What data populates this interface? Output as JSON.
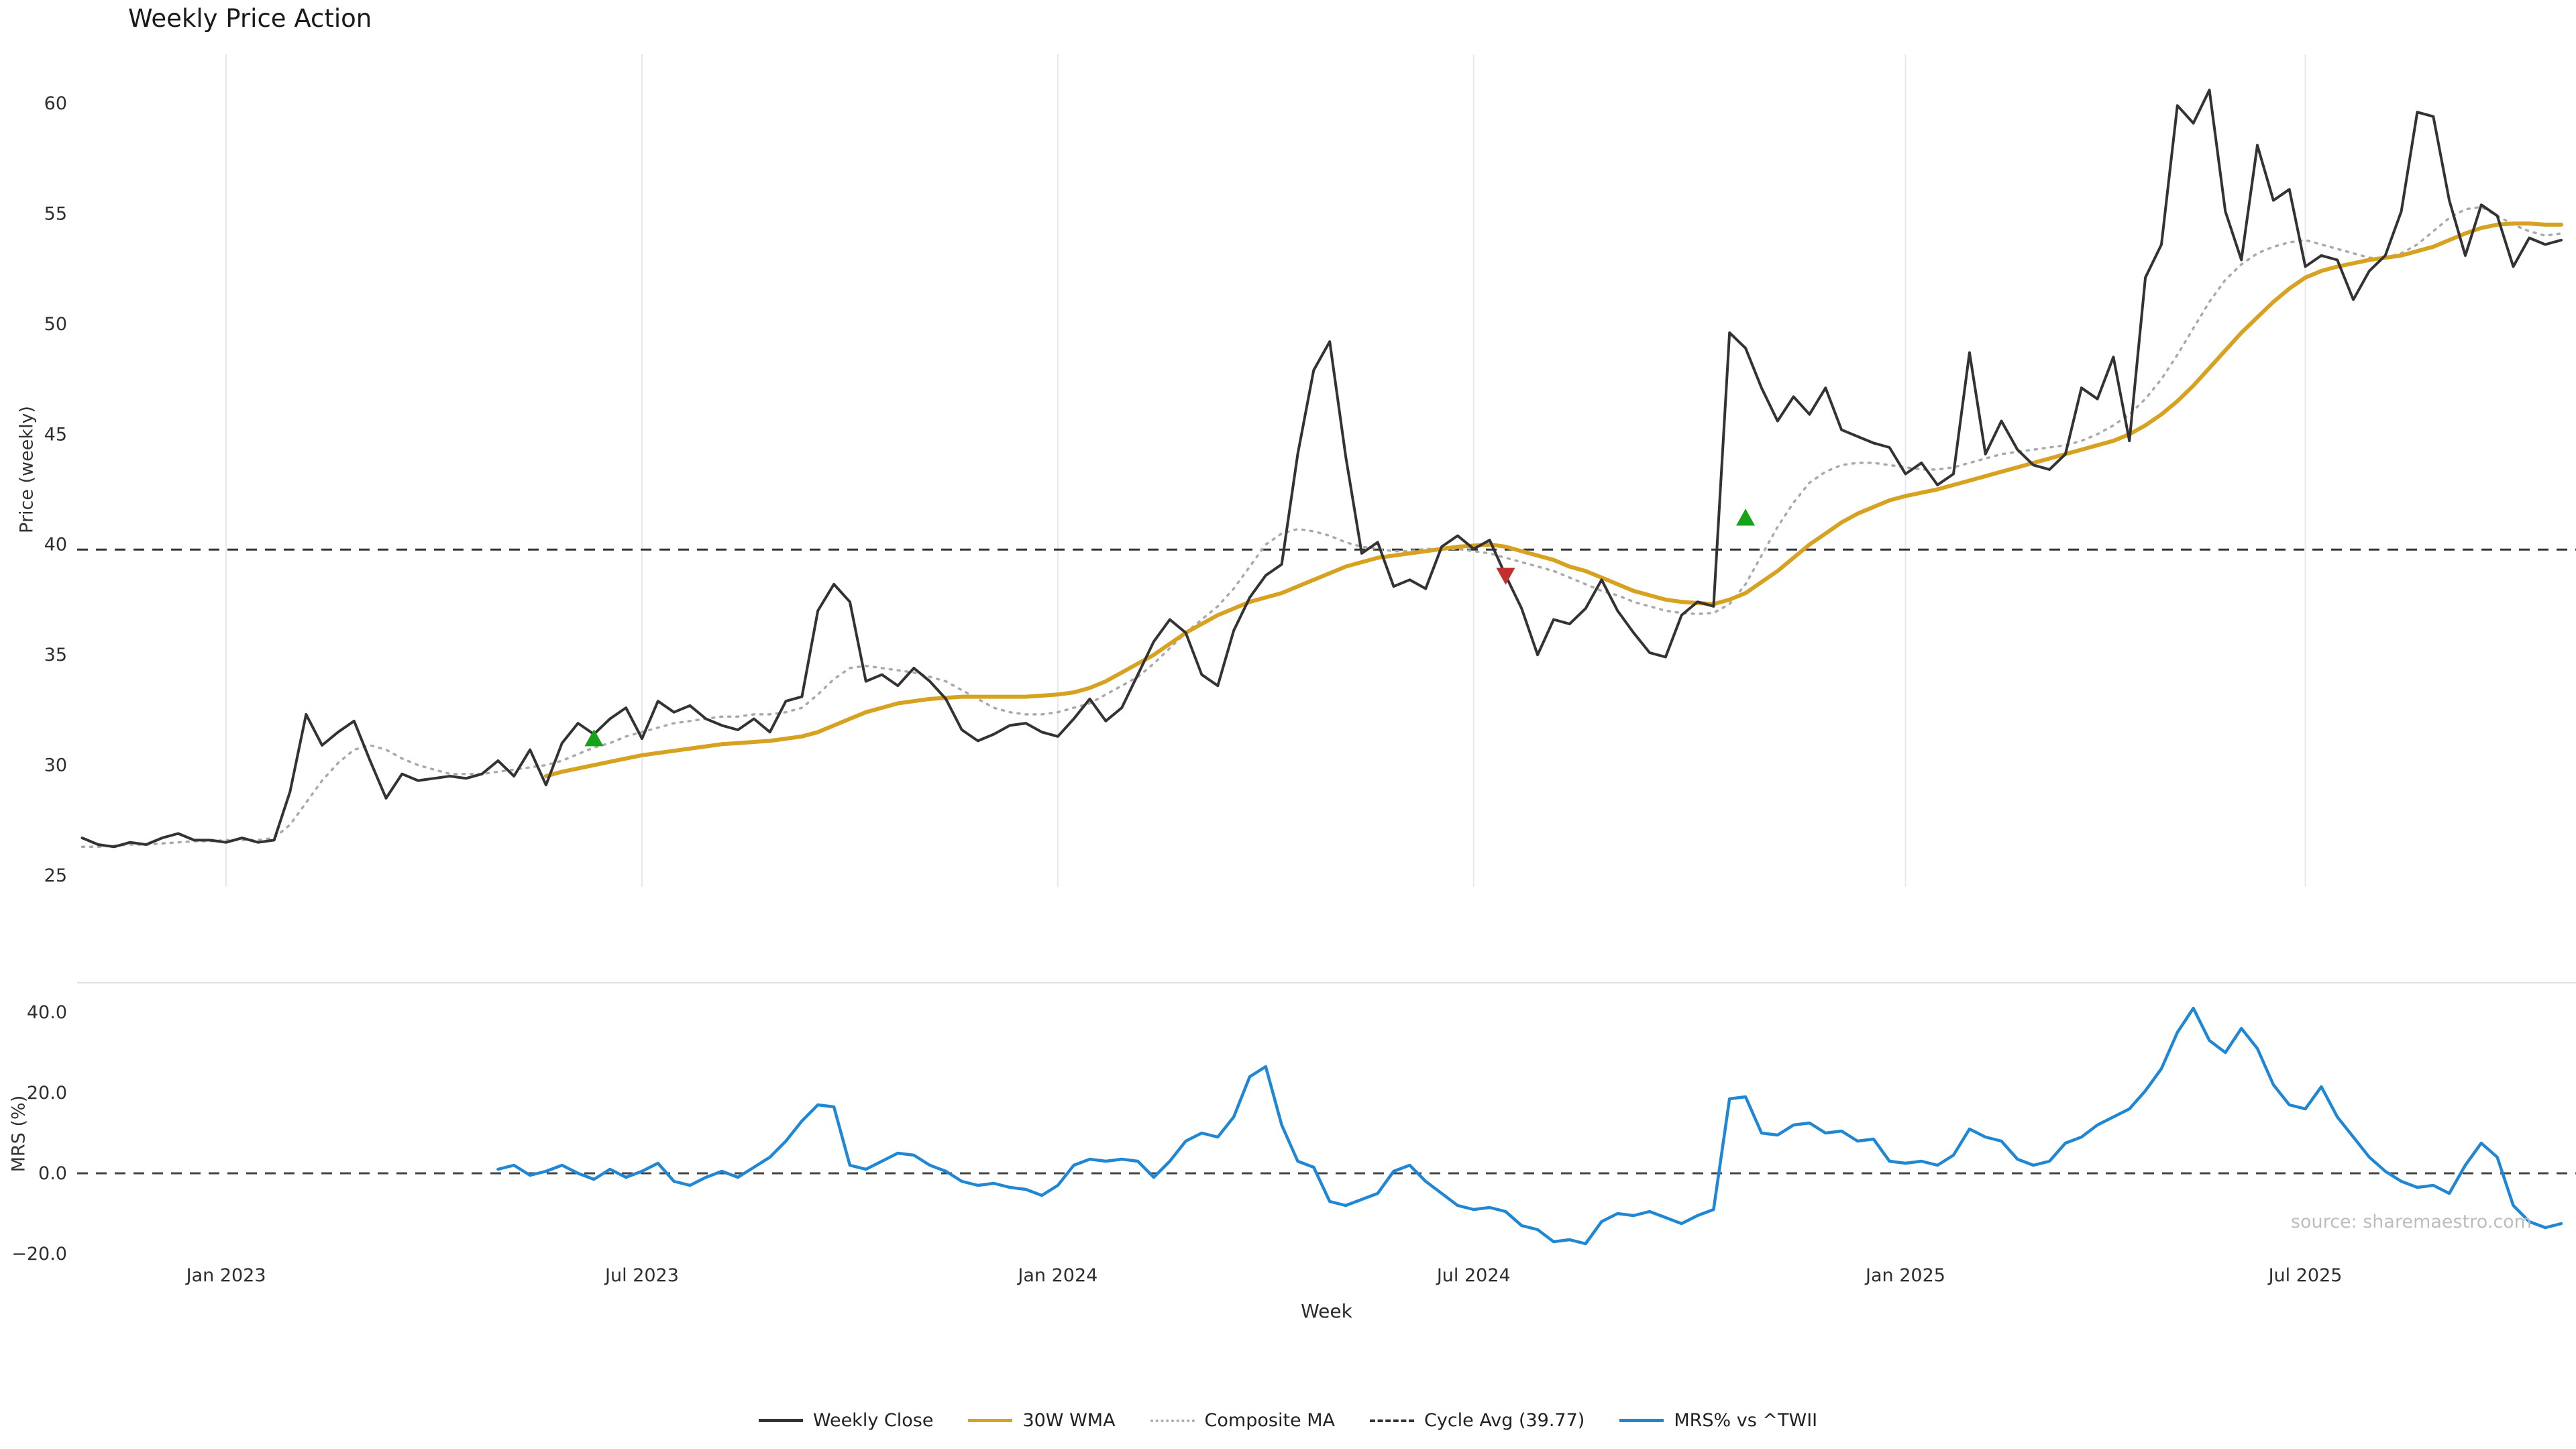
{
  "title": "Weekly Price Action",
  "source": "source: sharemaestro.com",
  "axes": {
    "price_label": "Price (weekly)",
    "mrs_label": "MRS (%)",
    "x_label": "Week"
  },
  "legend": [
    {
      "label": "Weekly Close",
      "color": "#333333",
      "style": "solid"
    },
    {
      "label": "30W WMA",
      "color": "#d6a220",
      "style": "solid"
    },
    {
      "label": "Composite MA",
      "color": "#aaaaaa",
      "style": "dotted"
    },
    {
      "label": "Cycle Avg (39.77)",
      "color": "#333333",
      "style": "dashed"
    },
    {
      "label": "MRS% vs ^TWII",
      "color": "#1f87d4",
      "style": "solid"
    }
  ],
  "chart_data": [
    {
      "type": "line",
      "panel": "price",
      "title": "Weekly Price Action",
      "xlabel": "Week",
      "ylabel": "Price (weekly)",
      "ylim": [
        24,
        62
      ],
      "yticks": [
        25,
        30,
        35,
        40,
        45,
        50,
        55,
        60
      ],
      "x_unit": "week_index",
      "x_range_weeks": [
        0,
        155
      ],
      "xticks": [
        {
          "week": 9,
          "label": "Jan 2023"
        },
        {
          "week": 35,
          "label": "Jul 2023"
        },
        {
          "week": 61,
          "label": "Jan 2024"
        },
        {
          "week": 87,
          "label": "Jul 2024"
        },
        {
          "week": 114,
          "label": "Jan 2025"
        },
        {
          "week": 139,
          "label": "Jul 2025"
        }
      ],
      "grid": "vertical-only",
      "legend_position": "bottom",
      "cycle_avg": 39.77,
      "series": [
        {
          "name": "Composite MA",
          "color": "#aaaaaa",
          "dash": "dot",
          "width": 3.5,
          "start_week": 0,
          "values": [
            26.3,
            26.3,
            26.35,
            26.4,
            26.4,
            26.45,
            26.5,
            26.55,
            26.55,
            26.6,
            26.6,
            26.6,
            26.7,
            27.3,
            28.3,
            29.3,
            30.1,
            30.7,
            30.9,
            30.7,
            30.3,
            30.0,
            29.8,
            29.6,
            29.6,
            29.6,
            29.7,
            29.8,
            29.9,
            30.0,
            30.2,
            30.5,
            30.8,
            31.0,
            31.3,
            31.5,
            31.7,
            31.9,
            32.0,
            32.1,
            32.2,
            32.2,
            32.3,
            32.3,
            32.4,
            32.6,
            33.2,
            33.9,
            34.4,
            34.5,
            34.4,
            34.3,
            34.2,
            34.0,
            33.8,
            33.4,
            33.0,
            32.6,
            32.4,
            32.3,
            32.3,
            32.4,
            32.6,
            32.8,
            33.2,
            33.6,
            34.0,
            34.6,
            35.3,
            36.0,
            36.6,
            37.2,
            38.0,
            39.0,
            40.0,
            40.5,
            40.7,
            40.6,
            40.4,
            40.1,
            39.9,
            39.8,
            39.7,
            39.7,
            39.8,
            39.8,
            39.8,
            39.7,
            39.6,
            39.4,
            39.2,
            39.0,
            38.8,
            38.5,
            38.2,
            37.9,
            37.7,
            37.4,
            37.2,
            37.0,
            36.9,
            36.85,
            36.9,
            37.3,
            38.2,
            39.5,
            40.8,
            41.9,
            42.8,
            43.3,
            43.6,
            43.7,
            43.7,
            43.6,
            43.5,
            43.4,
            43.4,
            43.5,
            43.7,
            43.9,
            44.1,
            44.2,
            44.3,
            44.4,
            44.5,
            44.7,
            45.0,
            45.4,
            45.9,
            46.6,
            47.5,
            48.6,
            49.8,
            51.0,
            52.0,
            52.7,
            53.2,
            53.5,
            53.7,
            53.8,
            53.6,
            53.4,
            53.2,
            53.0,
            53.0,
            53.2,
            53.6,
            54.2,
            54.8,
            55.2,
            55.3,
            54.9,
            54.5,
            54.2,
            54.0,
            54.1
          ]
        },
        {
          "name": "30W WMA",
          "color": "#d6a220",
          "dash": "solid",
          "width": 6,
          "start_week": 29,
          "values": [
            29.5,
            29.7,
            29.85,
            30.0,
            30.15,
            30.3,
            30.45,
            30.55,
            30.65,
            30.75,
            30.85,
            30.95,
            31.0,
            31.05,
            31.1,
            31.2,
            31.3,
            31.5,
            31.8,
            32.1,
            32.4,
            32.6,
            32.8,
            32.9,
            33.0,
            33.05,
            33.1,
            33.1,
            33.1,
            33.1,
            33.1,
            33.15,
            33.2,
            33.3,
            33.5,
            33.8,
            34.2,
            34.6,
            35.0,
            35.5,
            36.0,
            36.4,
            36.8,
            37.1,
            37.4,
            37.6,
            37.8,
            38.1,
            38.4,
            38.7,
            39.0,
            39.2,
            39.4,
            39.5,
            39.6,
            39.7,
            39.8,
            39.9,
            39.95,
            40.0,
            39.9,
            39.7,
            39.5,
            39.3,
            39.0,
            38.8,
            38.5,
            38.2,
            37.9,
            37.7,
            37.5,
            37.4,
            37.35,
            37.3,
            37.5,
            37.8,
            38.3,
            38.8,
            39.4,
            40.0,
            40.5,
            41.0,
            41.4,
            41.7,
            42.0,
            42.2,
            42.35,
            42.5,
            42.7,
            42.9,
            43.1,
            43.3,
            43.5,
            43.7,
            43.9,
            44.1,
            44.3,
            44.5,
            44.7,
            45.0,
            45.4,
            45.9,
            46.5,
            47.2,
            48.0,
            48.8,
            49.6,
            50.3,
            51.0,
            51.6,
            52.1,
            52.4,
            52.6,
            52.75,
            52.9,
            53.0,
            53.1,
            53.3,
            53.5,
            53.8,
            54.1,
            54.35,
            54.5,
            54.55,
            54.55,
            54.5,
            54.5
          ]
        },
        {
          "name": "Weekly Close",
          "color": "#333333",
          "dash": "solid",
          "width": 4,
          "start_week": 0,
          "values": [
            26.7,
            26.4,
            26.3,
            26.5,
            26.4,
            26.7,
            26.9,
            26.6,
            26.6,
            26.5,
            26.7,
            26.5,
            26.6,
            28.8,
            32.3,
            30.9,
            31.5,
            32.0,
            30.2,
            28.5,
            29.6,
            29.3,
            29.4,
            29.5,
            29.4,
            29.6,
            30.2,
            29.5,
            30.7,
            29.1,
            31.0,
            31.9,
            31.4,
            32.1,
            32.6,
            31.2,
            32.9,
            32.4,
            32.7,
            32.1,
            31.8,
            31.6,
            32.1,
            31.5,
            32.9,
            33.1,
            37.0,
            38.2,
            37.4,
            33.8,
            34.1,
            33.6,
            34.4,
            33.8,
            33.0,
            31.6,
            31.1,
            31.4,
            31.8,
            31.9,
            31.5,
            31.3,
            32.1,
            33.0,
            32.0,
            32.6,
            34.1,
            35.6,
            36.6,
            36.0,
            34.1,
            33.6,
            36.1,
            37.6,
            38.6,
            39.1,
            44.1,
            47.9,
            49.2,
            44.0,
            39.6,
            40.1,
            38.1,
            38.4,
            38.0,
            39.9,
            40.4,
            39.8,
            40.2,
            38.6,
            37.1,
            35.0,
            36.6,
            36.4,
            37.1,
            38.4,
            37.0,
            36.0,
            35.1,
            34.9,
            36.8,
            37.4,
            37.2,
            49.6,
            48.9,
            47.1,
            45.6,
            46.7,
            45.9,
            47.1,
            45.2,
            44.9,
            44.6,
            44.4,
            43.2,
            43.7,
            42.7,
            43.2,
            48.7,
            44.1,
            45.6,
            44.3,
            43.6,
            43.4,
            44.1,
            47.1,
            46.6,
            48.5,
            44.7,
            52.1,
            53.6,
            59.9,
            59.1,
            60.6,
            55.1,
            52.9,
            58.1,
            55.6,
            56.1,
            52.6,
            53.1,
            52.9,
            51.1,
            52.4,
            53.1,
            55.1,
            59.6,
            59.4,
            55.6,
            53.1,
            55.4,
            54.9,
            52.6,
            53.9,
            53.6,
            53.8
          ]
        }
      ],
      "markers": [
        {
          "week": 32,
          "value": 31.2,
          "shape": "triangle-up",
          "color": "#17a317",
          "meaning": "buy-signal"
        },
        {
          "week": 89,
          "value": 38.6,
          "shape": "triangle-down",
          "color": "#c22f2f",
          "meaning": "sell-signal"
        },
        {
          "week": 104,
          "value": 41.2,
          "shape": "triangle-up",
          "color": "#17a317",
          "meaning": "buy-signal"
        }
      ]
    },
    {
      "type": "line",
      "panel": "mrs",
      "ylabel": "MRS (%)",
      "ylim": [
        -22,
        45
      ],
      "yticks": [
        40,
        20,
        0,
        -20
      ],
      "ytick_labels": [
        "40.0",
        "20.0",
        "0.0",
        "−20.0"
      ],
      "zero_line": 0,
      "series": [
        {
          "name": "MRS% vs ^TWII",
          "color": "#1f87d4",
          "dash": "solid",
          "width": 4.5,
          "start_week": 26,
          "values": [
            1.0,
            2.0,
            -0.5,
            0.5,
            2.0,
            0.0,
            -1.5,
            1.0,
            -1.0,
            0.5,
            2.5,
            -2.0,
            -3.0,
            -1.0,
            0.5,
            -1.0,
            1.5,
            4.0,
            8.0,
            13.0,
            17.0,
            16.5,
            2.0,
            1.0,
            3.0,
            5.0,
            4.5,
            2.0,
            0.5,
            -2.0,
            -3.0,
            -2.5,
            -3.5,
            -4.0,
            -5.5,
            -3.0,
            2.0,
            3.5,
            3.0,
            3.5,
            3.0,
            -1.0,
            3.0,
            8.0,
            10.0,
            9.0,
            14.0,
            24.0,
            26.5,
            12.0,
            3.0,
            1.5,
            -7.0,
            -8.0,
            -6.5,
            -5.0,
            0.5,
            2.0,
            -2.0,
            -5.0,
            -8.0,
            -9.0,
            -8.5,
            -9.5,
            -13.0,
            -14.0,
            -17.0,
            -16.5,
            -17.5,
            -12.0,
            -10.0,
            -10.5,
            -9.5,
            -11.0,
            -12.5,
            -10.5,
            -9.0,
            18.5,
            19.0,
            10.0,
            9.5,
            12.0,
            12.5,
            10.0,
            10.5,
            8.0,
            8.5,
            3.0,
            2.5,
            3.0,
            2.0,
            4.5,
            11.0,
            9.0,
            8.0,
            3.5,
            2.0,
            3.0,
            7.5,
            9.0,
            12.0,
            14.0,
            16.0,
            20.5,
            26.0,
            35.0,
            41.0,
            33.0,
            30.0,
            36.0,
            31.0,
            22.0,
            17.0,
            16.0,
            21.5,
            14.0,
            9.0,
            4.0,
            0.5,
            -2.0,
            -3.5,
            -3.0,
            -5.0,
            2.0,
            7.5,
            4.0,
            -8.0,
            -12.0,
            -13.5,
            -12.5
          ]
        }
      ]
    }
  ]
}
